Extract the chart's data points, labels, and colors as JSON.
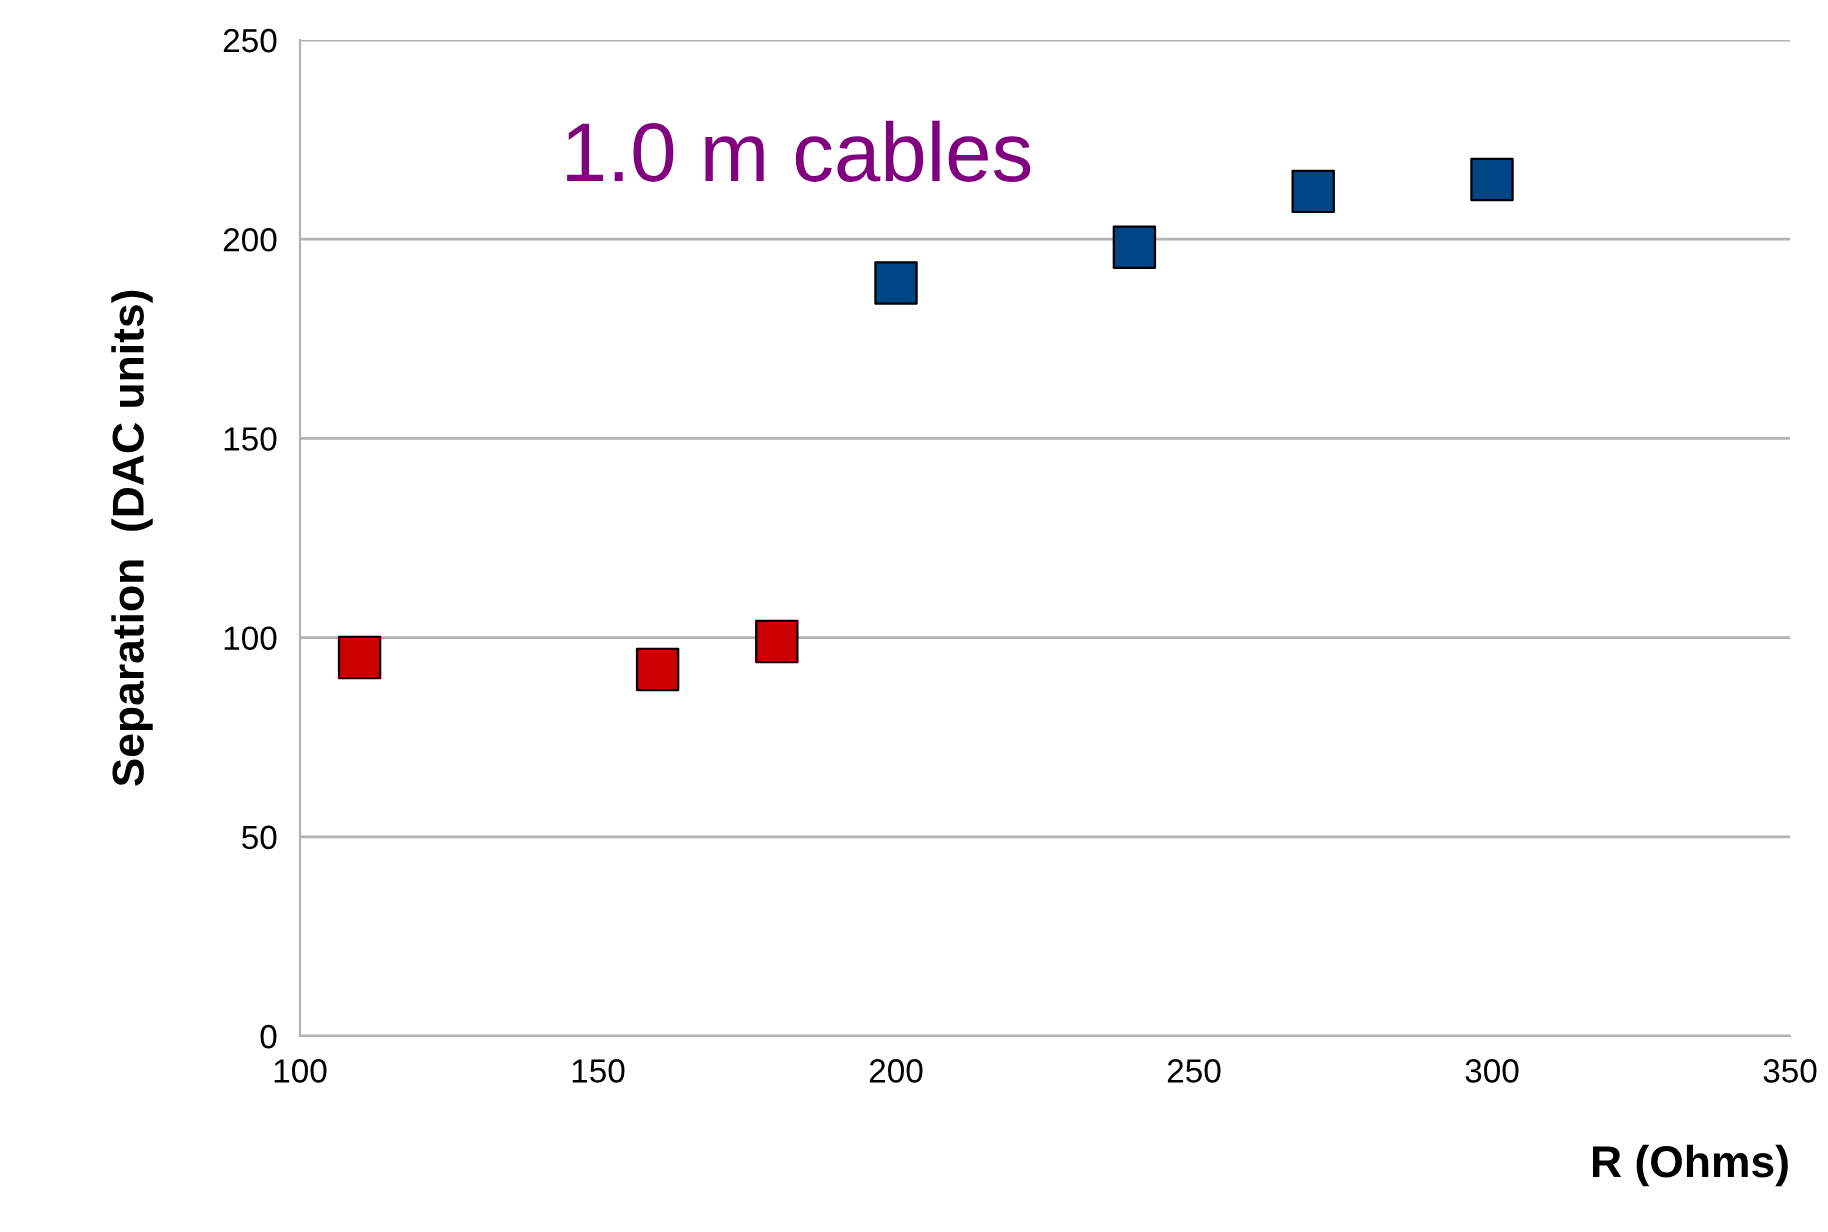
{
  "chart_data": {
    "type": "scatter",
    "xlabel": "R (Ohms)",
    "ylabel": "Separation  (DAC units)",
    "annotations": [
      "1.0 m cables"
    ],
    "series": [
      {
        "color": "#cc0000",
        "x": [
          110,
          160,
          180
        ],
        "values": [
          95,
          92,
          99
        ]
      },
      {
        "color": "#004586",
        "x": [
          200,
          240,
          270,
          300
        ],
        "values": [
          189,
          198,
          212,
          215
        ]
      }
    ],
    "xlim": [
      100,
      350
    ],
    "xticks": [
      100,
      150,
      200,
      250,
      300,
      350
    ],
    "ylim": [
      0,
      250
    ],
    "yticks": [
      0,
      50,
      100,
      150,
      200,
      250
    ],
    "grid": "y",
    "marker": "square",
    "legend": false
  }
}
